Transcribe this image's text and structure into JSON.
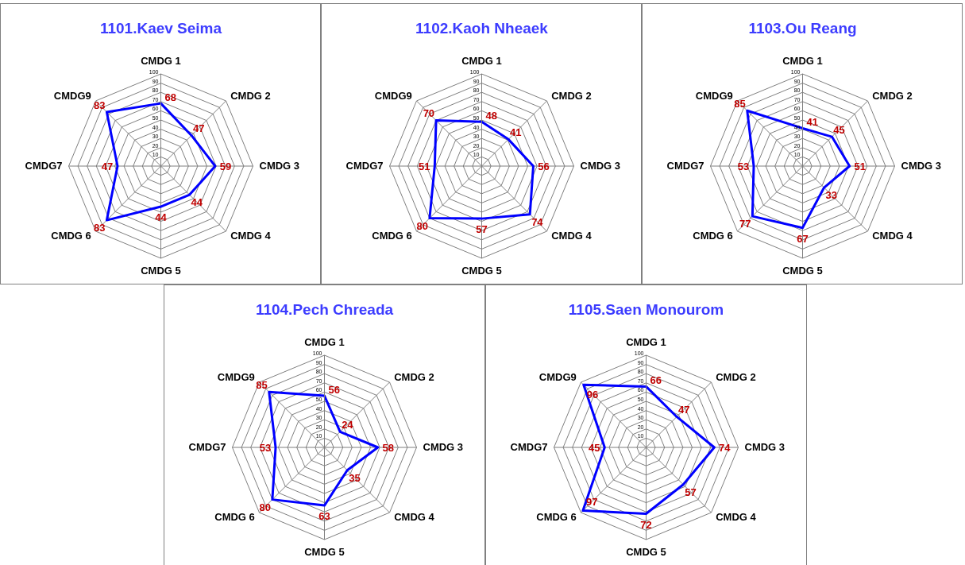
{
  "chart_data": [
    {
      "type": "radar",
      "title": "1101.Kaev Seima",
      "categories": [
        "CMDG 1",
        "CMDG 2",
        "CMDG 3",
        "CMDG 4",
        "CMDG 5",
        "CMDG 6",
        "CMDG7",
        "CMDG9"
      ],
      "series": [
        {
          "color": "#0000ff",
          "values": [
            68,
            47,
            59,
            44,
            44,
            83,
            47,
            83
          ]
        }
      ],
      "ylim": [
        0,
        100
      ],
      "yticks": [
        10,
        20,
        30,
        40,
        50,
        60,
        70,
        80,
        90,
        100
      ],
      "grid": true,
      "data_labels": true
    },
    {
      "type": "radar",
      "title": "1102.Kaoh Nheaek",
      "categories": [
        "CMDG 1",
        "CMDG 2",
        "CMDG 3",
        "CMDG 4",
        "CMDG 5",
        "CMDG 6",
        "CMDG7",
        "CMDG9"
      ],
      "series": [
        {
          "color": "#0000ff",
          "values": [
            48,
            41,
            56,
            74,
            57,
            80,
            51,
            70
          ]
        }
      ],
      "ylim": [
        0,
        100
      ],
      "yticks": [
        10,
        20,
        30,
        40,
        50,
        60,
        70,
        80,
        90,
        100
      ],
      "grid": true,
      "data_labels": true
    },
    {
      "type": "radar",
      "title": "1103.Ou Reang",
      "categories": [
        "CMDG 1",
        "CMDG 2",
        "CMDG 3",
        "CMDG 4",
        "CMDG 5",
        "CMDG 6",
        "CMDG7",
        "CMDG9"
      ],
      "series": [
        {
          "color": "#0000ff",
          "values": [
            41,
            45,
            51,
            33,
            67,
            77,
            53,
            85
          ]
        }
      ],
      "ylim": [
        0,
        100
      ],
      "yticks": [
        10,
        20,
        30,
        40,
        50,
        60,
        70,
        80,
        90,
        100
      ],
      "grid": true,
      "data_labels": true
    },
    {
      "type": "radar",
      "title": "1104.Pech Chreada",
      "categories": [
        "CMDG 1",
        "CMDG 2",
        "CMDG 3",
        "CMDG 4",
        "CMDG 5",
        "CMDG 6",
        "CMDG7",
        "CMDG9"
      ],
      "series": [
        {
          "color": "#0000ff",
          "values": [
            56,
            24,
            58,
            35,
            63,
            80,
            53,
            85
          ]
        }
      ],
      "ylim": [
        0,
        100
      ],
      "yticks": [
        10,
        20,
        30,
        40,
        50,
        60,
        70,
        80,
        90,
        100
      ],
      "grid": true,
      "data_labels": true
    },
    {
      "type": "radar",
      "title": "1105.Saen Monourom",
      "categories": [
        "CMDG 1",
        "CMDG 2",
        "CMDG 3",
        "CMDG 4",
        "CMDG 5",
        "CMDG 6",
        "CMDG7",
        "CMDG9"
      ],
      "series": [
        {
          "color": "#0000ff",
          "values": [
            66,
            47,
            74,
            57,
            72,
            97,
            45,
            96
          ]
        }
      ],
      "ylim": [
        0,
        100
      ],
      "yticks": [
        10,
        20,
        30,
        40,
        50,
        60,
        70,
        80,
        90,
        100
      ],
      "grid": true,
      "data_labels": true
    }
  ]
}
